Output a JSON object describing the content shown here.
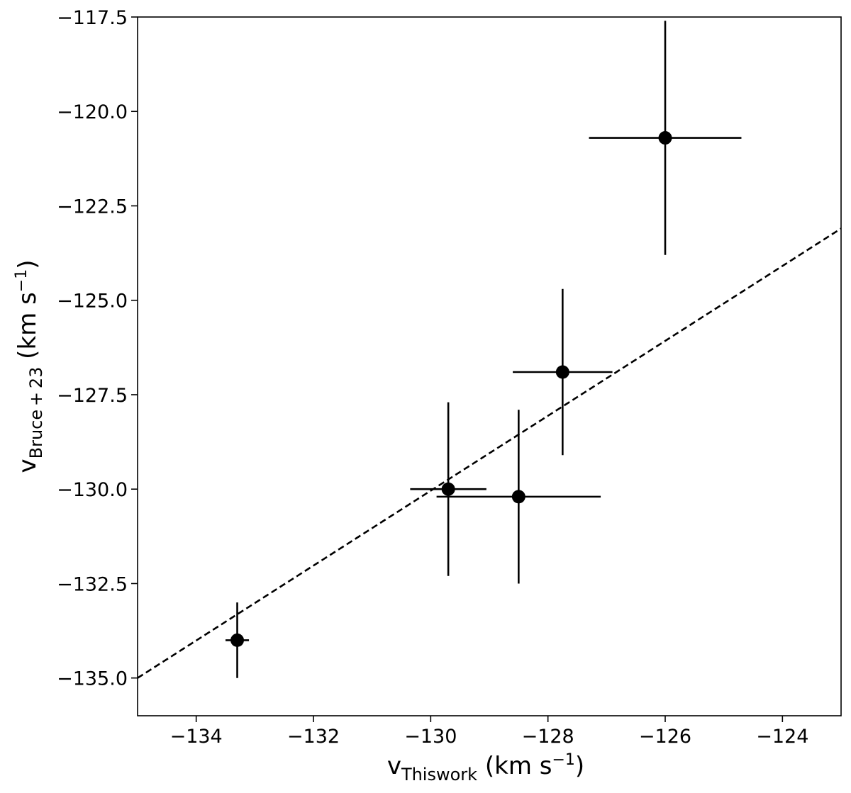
{
  "chart_data": {
    "type": "scatter",
    "title": "",
    "xlabel": {
      "main": "v",
      "sub": "Thiswork",
      "unit_pre": " (km s",
      "sup": "−1",
      "unit_post": ")"
    },
    "ylabel": {
      "main": "v",
      "sub": "Bruce + 23",
      "unit_pre": " (km s",
      "sup": "−1",
      "unit_post": ")"
    },
    "xlim": [
      -135,
      -123
    ],
    "ylim": [
      -136,
      -117.5
    ],
    "xticks": [
      -134,
      -132,
      -130,
      -128,
      -126,
      -124
    ],
    "xtick_labels": [
      "−134",
      "−132",
      "−130",
      "−128",
      "−126",
      "−124"
    ],
    "yticks": [
      -135.0,
      -132.5,
      -130.0,
      -127.5,
      -125.0,
      -122.5,
      -120.0,
      -117.5
    ],
    "ytick_labels": [
      "−135.0",
      "−132.5",
      "−130.0",
      "−127.5",
      "−125.0",
      "−122.5",
      "−120.0",
      "−117.5"
    ],
    "grid": false,
    "points": [
      {
        "x": -133.3,
        "y": -134.0,
        "xerr": 0.2,
        "yerr": 1.0
      },
      {
        "x": -129.7,
        "y": -130.0,
        "xerr": 0.65,
        "yerr": 2.3
      },
      {
        "x": -128.5,
        "y": -130.2,
        "xerr": 1.4,
        "yerr": 2.3
      },
      {
        "x": -127.75,
        "y": -126.9,
        "xerr": 0.85,
        "yerr": 2.2
      },
      {
        "x": -126.0,
        "y": -120.7,
        "xerr": 1.3,
        "yerr": 3.1
      }
    ],
    "reference_line": {
      "style": "dashed",
      "x": [
        -135,
        -123
      ],
      "y": [
        -135.0,
        -123.1
      ]
    },
    "colors": {
      "points": "#000000",
      "line": "#000000"
    }
  }
}
